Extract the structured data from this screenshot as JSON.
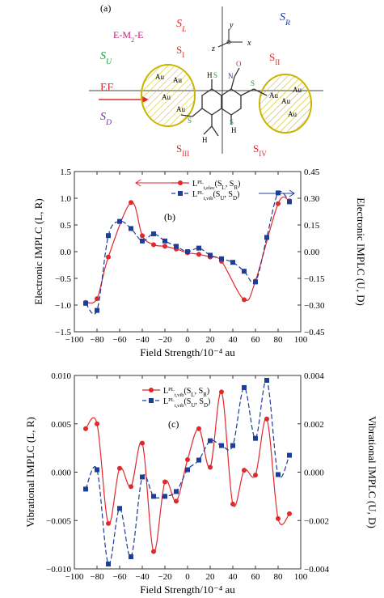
{
  "colors": {
    "red_series": "#e0292d",
    "blue_series": "#1d3d9b",
    "gold": "#c9b400",
    "structure": "#333333",
    "purple": "#7a2d9a",
    "magenta": "#c01b7c",
    "green": "#1f9a3c"
  },
  "schematic": {
    "panel_label": "(a)",
    "s_l": "S_L",
    "s_r": "S_R",
    "s_u": "S_U",
    "s_d": "S_D",
    "s_1": "S_I",
    "s_2": "S_II",
    "s_3": "S_III",
    "s_4": "S_IV",
    "eme": "E-M_2-E",
    "ef": "EF",
    "axis_x": "x",
    "axis_y": "y",
    "axis_z": "z",
    "au_atoms": [
      "Au",
      "Au",
      "Au",
      "Au",
      "Au",
      "Au",
      "Au",
      "Au"
    ],
    "atoms": [
      "O",
      "N",
      "H",
      "S",
      "S",
      "H",
      "H",
      "S",
      "S"
    ]
  },
  "chart_data": [
    {
      "type": "line",
      "panel_label": "(b)",
      "xlabel": "Field Strength/10⁻⁴ au",
      "ylabel_left": "Electronic IMPLC (L, R)",
      "ylabel_right": "Electronic IMPLC (U, D)",
      "xlim": [
        -100,
        100
      ],
      "ylim_left": [
        -1.5,
        1.5
      ],
      "ylim_right": [
        -0.45,
        0.45
      ],
      "xticks": [
        -100,
        -80,
        -60,
        -40,
        -20,
        0,
        20,
        40,
        60,
        80,
        100
      ],
      "yticks_left": [
        "1.5",
        "1.0",
        "0.5",
        "0.0",
        "−0.5",
        "−1.0",
        "−1.5"
      ],
      "yticks_right": [
        "0.45",
        "0.30",
        "0.15",
        "0.00",
        "−0.15",
        "−0.30",
        "−0.45"
      ],
      "legend_position": "top-center",
      "series": [
        {
          "name": "L^PL_t,elec(S_L, S_R)",
          "axis": "left",
          "x": [
            -90,
            -80,
            -70,
            -50,
            -40,
            -30,
            -20,
            -10,
            0,
            10,
            20,
            30,
            50,
            60,
            80,
            90
          ],
          "y": [
            -0.95,
            -0.88,
            -0.1,
            0.92,
            0.3,
            0.13,
            0.1,
            0.05,
            -0.02,
            -0.05,
            -0.1,
            -0.18,
            -0.9,
            -0.55,
            0.9,
            0.95
          ]
        },
        {
          "name": "L^PL_t,vib(S_U, S_D)",
          "axis": "right",
          "x": [
            -90,
            -80,
            -70,
            -60,
            -50,
            -40,
            -30,
            -20,
            -10,
            0,
            10,
            20,
            30,
            40,
            50,
            60,
            70,
            80,
            90
          ],
          "y": [
            -0.29,
            -0.33,
            0.09,
            0.17,
            0.13,
            0.06,
            0.1,
            0.06,
            0.03,
            0.0,
            0.02,
            -0.02,
            -0.04,
            -0.06,
            -0.11,
            -0.17,
            0.08,
            0.33,
            0.28
          ]
        }
      ]
    },
    {
      "type": "line",
      "panel_label": "(c)",
      "xlabel": "Field Strength/10⁻⁴ au",
      "ylabel_left": "Vibrational IMPLC (L, R)",
      "ylabel_right": "Vibrational IMPLC (U, D)",
      "xlim": [
        -100,
        100
      ],
      "ylim_left": [
        -0.01,
        0.01
      ],
      "ylim_right": [
        -0.004,
        0.004
      ],
      "xticks": [
        -100,
        -80,
        -60,
        -40,
        -20,
        0,
        20,
        40,
        60,
        80,
        100
      ],
      "yticks_left": [
        "0.010",
        "0.005",
        "0.000",
        "−0.005",
        "−0.010"
      ],
      "yticks_right": [
        "0.004",
        "0.002",
        "0.000",
        "−0.002",
        "−0.004"
      ],
      "legend_position": "top-center",
      "series": [
        {
          "name": "L^PL_t,vib(S_L, S_R)",
          "axis": "left",
          "x": [
            -90,
            -80,
            -70,
            -60,
            -50,
            -40,
            -30,
            -20,
            -10,
            0,
            10,
            20,
            30,
            40,
            50,
            60,
            70,
            80,
            90
          ],
          "y": [
            0.0045,
            0.005,
            -0.0053,
            0.0004,
            -0.0015,
            0.003,
            -0.0082,
            -0.001,
            -0.003,
            0.0013,
            0.0045,
            0.0005,
            0.0083,
            -0.0033,
            0.0002,
            -0.0003,
            0.0055,
            -0.0048,
            -0.0043
          ]
        },
        {
          "name": "L^PL_t,vib(S_U, S_D)",
          "axis": "right",
          "x": [
            -90,
            -80,
            -70,
            -60,
            -50,
            -40,
            -30,
            -20,
            -10,
            0,
            10,
            20,
            30,
            40,
            50,
            60,
            70,
            80,
            90
          ],
          "y": [
            -0.0007,
            0.0001,
            -0.0038,
            -0.0015,
            -0.0035,
            -0.0002,
            -0.001,
            -0.001,
            -0.0008,
            0.0001,
            0.0005,
            0.0013,
            0.0011,
            0.0011,
            0.0035,
            0.0014,
            0.0038,
            -0.0001,
            0.0007
          ]
        }
      ]
    }
  ]
}
